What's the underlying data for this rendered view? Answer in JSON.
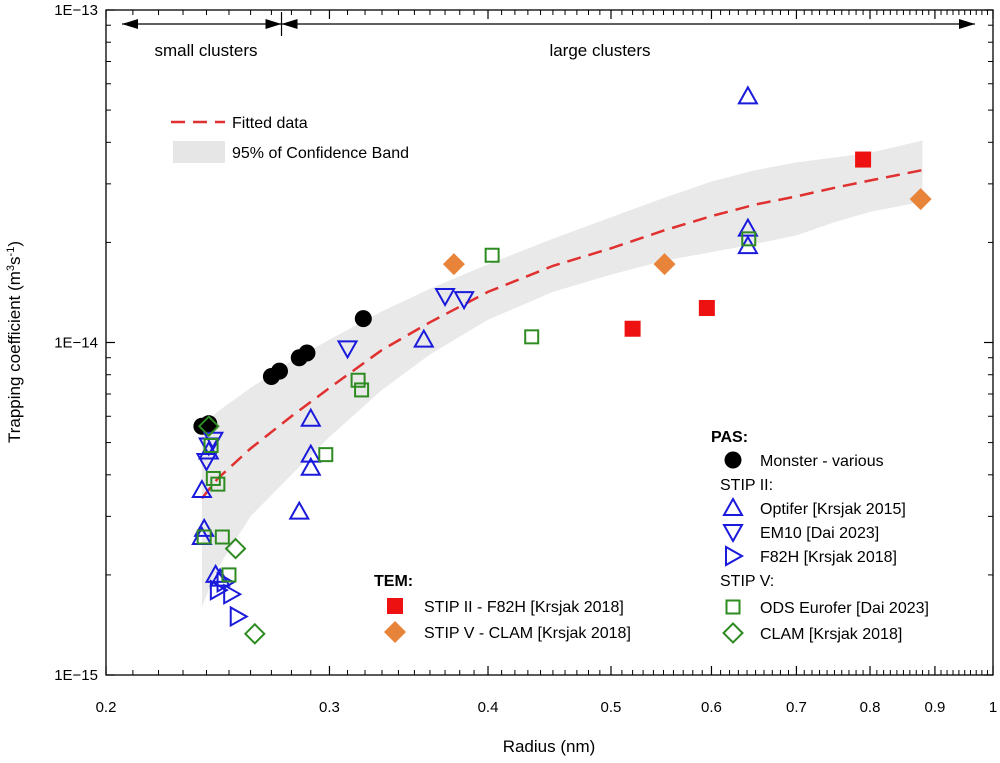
{
  "chart_data": {
    "type": "scatter",
    "x_scale": "log",
    "y_scale": "log",
    "xlabel": "Radius (nm)",
    "ylabel_main": "Trapping coefficient (m",
    "ylabel_sup1": "3",
    "ylabel_mid": "s",
    "ylabel_sup2": "-1",
    "ylabel_end": ")",
    "xlim": [
      0.2,
      1.0
    ],
    "ylim": [
      1e-15,
      1e-13
    ],
    "x_ticks": [
      {
        "value": 0.2,
        "label": "0.2"
      },
      {
        "value": 0.3,
        "label": "0.3"
      },
      {
        "value": 0.4,
        "label": "0.4"
      },
      {
        "value": 0.5,
        "label": "0.5"
      },
      {
        "value": 0.6,
        "label": "0.6"
      },
      {
        "value": 0.7,
        "label": "0.7"
      },
      {
        "value": 0.8,
        "label": "0.8"
      },
      {
        "value": 0.9,
        "label": "0.9"
      },
      {
        "value": 1.0,
        "label": "1"
      }
    ],
    "y_ticks": [
      {
        "value": 1e-15,
        "label": "1E−15"
      },
      {
        "value": 1e-14,
        "label": "1E−14"
      },
      {
        "value": 1e-13,
        "label": "1E−13"
      }
    ],
    "regions": {
      "small_label": "small clusters",
      "large_label": "large clusters",
      "boundary_x": 0.275
    },
    "fit": {
      "name": "Fitted data",
      "color": "#e03030",
      "x": [
        0.238,
        0.245,
        0.26,
        0.28,
        0.3,
        0.33,
        0.36,
        0.4,
        0.45,
        0.5,
        0.55,
        0.6,
        0.65,
        0.7,
        0.75,
        0.8,
        0.88
      ],
      "y": [
        3.4e-15,
        3.9e-15,
        4.8e-15,
        6e-15,
        7.3e-15,
        9.5e-15,
        1.15e-14,
        1.42e-14,
        1.7e-14,
        1.92e-14,
        2.17e-14,
        2.4e-14,
        2.6e-14,
        2.75e-14,
        2.92e-14,
        3.07e-14,
        3.3e-14
      ]
    },
    "band": {
      "name": "95% of Confidence Band",
      "color": "#e9e9e9",
      "x": [
        0.238,
        0.245,
        0.26,
        0.28,
        0.3,
        0.33,
        0.36,
        0.4,
        0.45,
        0.5,
        0.55,
        0.6,
        0.65,
        0.7,
        0.75,
        0.8,
        0.88
      ],
      "upper": [
        5.6e-15,
        6.2e-15,
        7.3e-15,
        8.8e-15,
        1.02e-14,
        1.24e-14,
        1.45e-14,
        1.72e-14,
        2.05e-14,
        2.38e-14,
        2.72e-14,
        3.05e-14,
        3.3e-14,
        3.48e-14,
        3.6e-14,
        3.72e-14,
        4.05e-14
      ],
      "lower": [
        1.6e-15,
        2.1e-15,
        3e-15,
        4e-15,
        5.2e-15,
        7.2e-15,
        9.2e-15,
        1.17e-14,
        1.42e-14,
        1.6e-14,
        1.76e-14,
        1.87e-14,
        1.98e-14,
        2.1e-14,
        2.3e-14,
        2.47e-14,
        2.65e-14
      ]
    },
    "pas_title": "PAS:",
    "tem_title": "TEM:",
    "stip2_label": "STIP II:",
    "stip5_label": "STIP V:",
    "series": [
      {
        "name": "Monster - various",
        "marker": "circle",
        "filled": true,
        "color": "#000000",
        "x": [
          0.238,
          0.241,
          0.27,
          0.274,
          0.284,
          0.288,
          0.319
        ],
        "y": [
          5.6e-15,
          5.7e-15,
          7.9e-15,
          8.2e-15,
          9e-15,
          9.3e-15,
          1.18e-14
        ]
      },
      {
        "name": "Optifer [Krsjak 2015]",
        "marker": "triangle-up",
        "filled": false,
        "color": "#1a1adc",
        "x": [
          0.238,
          0.238,
          0.239,
          0.241,
          0.244,
          0.246,
          0.284,
          0.29,
          0.29,
          0.29,
          0.356,
          0.641,
          0.641,
          0.641
        ],
        "y": [
          3.6e-15,
          2.6e-15,
          2.75e-15,
          4.7e-15,
          2e-15,
          1.95e-15,
          3.1e-15,
          4.6e-15,
          4.2e-15,
          5.9e-15,
          1.02e-14,
          5.5e-14,
          2.2e-14,
          1.95e-14
        ]
      },
      {
        "name": "EM10 [Dai 2023]",
        "marker": "triangle-down",
        "filled": false,
        "color": "#1a1adc",
        "x": [
          0.24,
          0.241,
          0.243,
          0.31,
          0.37,
          0.383
        ],
        "y": [
          4.4e-15,
          4.9e-15,
          5.1e-15,
          9.6e-15,
          1.38e-14,
          1.35e-14
        ]
      },
      {
        "name": "F82H [Krsjak 2018]",
        "marker": "triangle-right",
        "filled": false,
        "color": "#1a1adc",
        "x": [
          0.245,
          0.248,
          0.251,
          0.254
        ],
        "y": [
          1.8e-15,
          1.9e-15,
          1.75e-15,
          1.5e-15
        ]
      },
      {
        "name": "ODS Eurofer [Dai 2023]",
        "marker": "square",
        "filled": false,
        "color": "#2e8b22",
        "x": [
          0.239,
          0.242,
          0.243,
          0.245,
          0.247,
          0.25,
          0.298,
          0.316,
          0.318,
          0.403,
          0.433,
          0.642
        ],
        "y": [
          2.6e-15,
          4.9e-15,
          3.9e-15,
          3.75e-15,
          2.6e-15,
          2e-15,
          4.6e-15,
          7.7e-15,
          7.2e-15,
          1.83e-14,
          1.04e-14,
          2.05e-14
        ]
      },
      {
        "name": "CLAM [Krsjak 2018]",
        "marker": "diamond",
        "filled": false,
        "color": "#2e8b22",
        "x": [
          0.241,
          0.253,
          0.262
        ],
        "y": [
          5.6e-15,
          2.4e-15,
          1.33e-15
        ]
      },
      {
        "name": "STIP II - F82H [Krsjak 2018]",
        "marker": "square",
        "filled": true,
        "color": "#ee1111",
        "x": [
          0.52,
          0.595,
          0.79
        ],
        "y": [
          1.1e-14,
          1.27e-14,
          3.55e-14
        ]
      },
      {
        "name": "STIP V - CLAM [Krsjak 2018]",
        "marker": "diamond",
        "filled": true,
        "color": "#e8843a",
        "x": [
          0.376,
          0.551,
          0.877
        ],
        "y": [
          1.72e-14,
          1.72e-14,
          2.7e-14
        ]
      }
    ]
  }
}
